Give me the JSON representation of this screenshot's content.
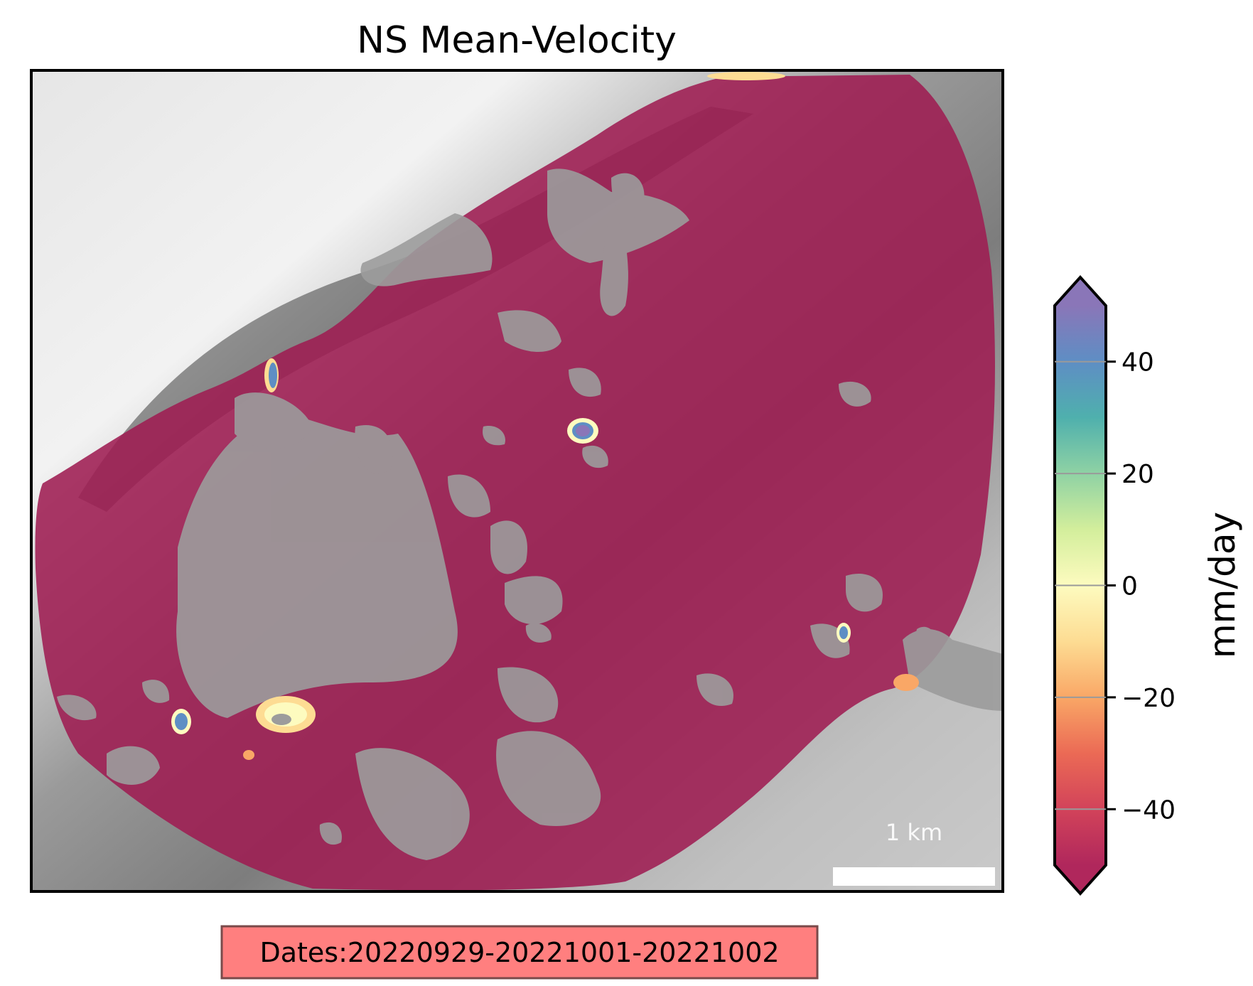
{
  "title": "NS Mean-Velocity",
  "scale_bar": {
    "label": "1 km"
  },
  "dates_box": {
    "text": "Dates:20220929-20221001-20221002",
    "fill": "#ff7f7f",
    "edge": "#7a4a4a"
  },
  "colorbar": {
    "label": "mm/day",
    "cmap": "Spectral",
    "vmin": -50,
    "vmax": 50,
    "extend": "both",
    "ticks": [
      {
        "value": 40,
        "label": "40"
      },
      {
        "value": 20,
        "label": "20"
      },
      {
        "value": 0,
        "label": "0"
      },
      {
        "value": -20,
        "label": "−20"
      },
      {
        "value": -40,
        "label": "−40"
      }
    ],
    "stops": [
      "#8a76b8",
      "#5e8ec4",
      "#4fb0ad",
      "#8fd2a4",
      "#d3ee9c",
      "#fdfbbf",
      "#fddc93",
      "#f9a766",
      "#eb6a55",
      "#d2435a",
      "#b0275c"
    ]
  },
  "map": {
    "overlay_color": "#9e1d52",
    "overlay_opacity": 0.88
  }
}
